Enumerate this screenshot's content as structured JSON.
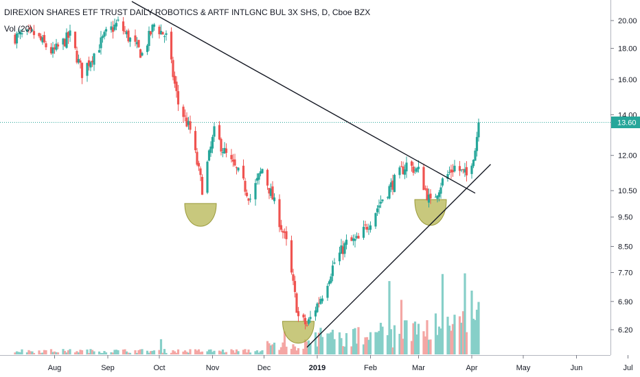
{
  "chart_data": {
    "type": "candlestick",
    "title": "DIREXION SHARES ETF TRUST DAILY ROBOTICS & ARTF INTLGNC BUL 3X SHS, D, Cboe BZX",
    "subtitle": "Vol (20)",
    "x_ticks": [
      "Aug",
      "Sep",
      "Oct",
      "Nov",
      "Dec",
      "2019",
      "Feb",
      "Mar",
      "Apr",
      "May",
      "Jun",
      "Jul"
    ],
    "y_ticks": [
      "20.00",
      "18.00",
      "16.00",
      "14.00",
      "12.00",
      "10.50",
      "9.50",
      "8.50",
      "7.70",
      "6.90",
      "6.20"
    ],
    "y_tick_values": [
      20.0,
      18.0,
      16.0,
      14.0,
      12.0,
      10.5,
      9.5,
      8.5,
      7.7,
      6.9,
      6.2
    ],
    "y_scale": "log",
    "last_price": "13.60",
    "last_price_value": 13.6,
    "colors": {
      "up": "#26a69a",
      "down": "#ef5350",
      "vol_up": "#86cfc8",
      "vol_down": "#f4a6a4",
      "pattern": "#b5b552",
      "line": "#131722",
      "price_line": "#26a69a"
    },
    "patterns": [
      {
        "type": "cup",
        "center": "2018-10-25",
        "top": 10.0,
        "bottom": 9.1
      },
      {
        "type": "cup",
        "center": "2018-12-21",
        "top": 6.4,
        "bottom": 5.85
      },
      {
        "type": "cup",
        "center": "2019-03-08",
        "top": 10.15,
        "bottom": 9.1
      }
    ],
    "trendlines": [
      {
        "from": [
          "2018-09-15",
          21.5
        ],
        "to": [
          "2019-04-03",
          10.4
        ]
      },
      {
        "from": [
          "2018-12-26",
          5.8
        ],
        "to": [
          "2019-04-12",
          11.6
        ]
      }
    ],
    "keypoints": [
      [
        "2018-07-09",
        18.8
      ],
      [
        "2018-07-20",
        19.0
      ],
      [
        "2018-07-31",
        17.7
      ],
      [
        "2018-08-10",
        18.9
      ],
      [
        "2018-08-17",
        16.4
      ],
      [
        "2018-08-31",
        19.0
      ],
      [
        "2018-09-07",
        19.8
      ],
      [
        "2018-09-14",
        18.6
      ],
      [
        "2018-09-21",
        17.6
      ],
      [
        "2018-09-28",
        19.7
      ],
      [
        "2018-10-05",
        18.8
      ],
      [
        "2018-10-12",
        14.6
      ],
      [
        "2018-10-19",
        13.2
      ],
      [
        "2018-10-26",
        10.6
      ],
      [
        "2018-11-02",
        13.1
      ],
      [
        "2018-11-09",
        12.0
      ],
      [
        "2018-11-16",
        11.2
      ],
      [
        "2018-11-23",
        10.2
      ],
      [
        "2018-11-30",
        11.4
      ],
      [
        "2018-12-06",
        10.2
      ],
      [
        "2018-12-14",
        8.6
      ],
      [
        "2018-12-21",
        6.5
      ],
      [
        "2018-12-26",
        6.3
      ],
      [
        "2019-01-04",
        7.1
      ],
      [
        "2019-01-11",
        8.0
      ],
      [
        "2019-01-18",
        8.6
      ],
      [
        "2019-01-25",
        8.7
      ],
      [
        "2019-02-01",
        9.4
      ],
      [
        "2019-02-08",
        10.2
      ],
      [
        "2019-02-15",
        10.9
      ],
      [
        "2019-02-22",
        11.6
      ],
      [
        "2019-03-01",
        11.3
      ],
      [
        "2019-03-08",
        10.0
      ],
      [
        "2019-03-15",
        10.9
      ],
      [
        "2019-03-22",
        11.5
      ],
      [
        "2019-03-29",
        11.1
      ],
      [
        "2019-04-03",
        12.3
      ],
      [
        "2019-04-05",
        13.6
      ]
    ]
  }
}
